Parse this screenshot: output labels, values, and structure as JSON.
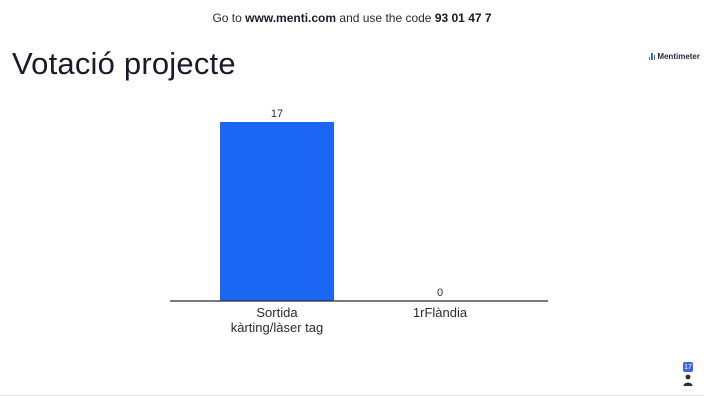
{
  "join": {
    "prefix": "Go to",
    "url": "www.menti.com",
    "middle": "and use the code",
    "code": "93 01 47 7"
  },
  "title": "Votació projecte",
  "brand": "Mentimeter",
  "responses": {
    "count": "17"
  },
  "colors": {
    "bar": "#1b66f2",
    "accent": "#3b66e0"
  },
  "chart_data": {
    "type": "bar",
    "categories": [
      [
        "Sortida",
        "kàrting/làser tag"
      ],
      [
        "1rFlàndia"
      ]
    ],
    "values": [
      17,
      0
    ],
    "title": "Votació projecte",
    "xlabel": "",
    "ylabel": "",
    "ylim": [
      0,
      17
    ],
    "grid": false,
    "legend": "none"
  },
  "icons": [
    "mentimeter-logo-icon",
    "person-icon"
  ]
}
